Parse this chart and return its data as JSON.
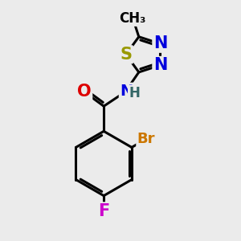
{
  "bg_color": "#ebebeb",
  "bond_color": "#000000",
  "bond_width": 2.2,
  "atoms": {
    "S": {
      "color": "#999900",
      "fontsize": 15
    },
    "N": {
      "color": "#0000dd",
      "fontsize": 15
    },
    "O": {
      "color": "#dd0000",
      "fontsize": 15
    },
    "Br": {
      "color": "#cc7700",
      "fontsize": 13
    },
    "F": {
      "color": "#cc00cc",
      "fontsize": 15
    },
    "NH": {
      "color": "#0000dd",
      "fontsize": 14
    },
    "H": {
      "color": "#336666",
      "fontsize": 12
    },
    "Me": {
      "color": "#000000",
      "fontsize": 12
    }
  }
}
